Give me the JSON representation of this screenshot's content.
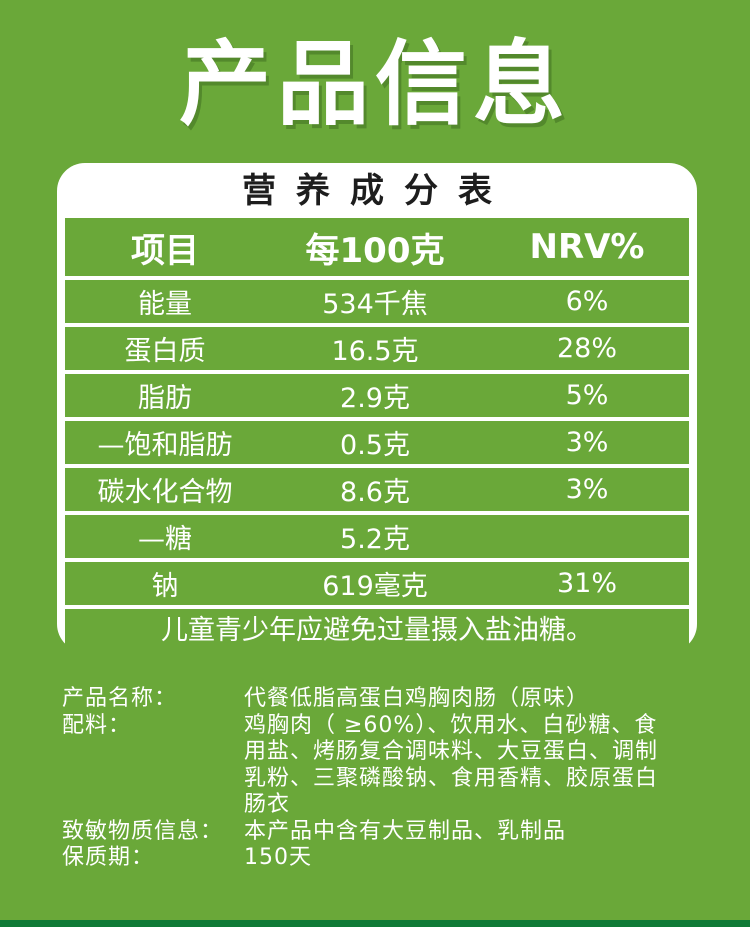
{
  "title": "产品信息",
  "table": {
    "title": "营养成分表",
    "headers": [
      "项目",
      "每100克",
      "NRV%"
    ],
    "rows": [
      {
        "item": "能量",
        "value": "534千焦",
        "nrv": "6%"
      },
      {
        "item": "蛋白质",
        "value": "16.5克",
        "nrv": "28%"
      },
      {
        "item": "脂肪",
        "value": "2.9克",
        "nrv": "5%"
      },
      {
        "item": "—饱和脂肪",
        "value": "0.5克",
        "nrv": "3%"
      },
      {
        "item": "碳水化合物",
        "value": "8.6克",
        "nrv": "3%"
      },
      {
        "item": "—糖",
        "value": "5.2克",
        "nrv": ""
      },
      {
        "item": "钠",
        "value": "619毫克",
        "nrv": "31%"
      }
    ],
    "note": "儿童青少年应避免过量摄入盐油糖。"
  },
  "info": {
    "name_label": "产品名称：",
    "name_value": "代餐低脂高蛋白鸡胸肉肠（原味）",
    "ingredients_label": "配料：",
    "ingredients_lines": [
      "鸡胸肉（ ≥60%）、饮用水、白砂糖、食",
      "用盐、烤肠复合调味料、大豆蛋白、调制",
      "乳粉、三聚磷酸钠、食用香精、胶原蛋白",
      "肠衣"
    ],
    "allergen_label": "致敏物质信息：",
    "allergen_value": "本产品中含有大豆制品、乳制品",
    "shelf_label": "保质期：",
    "shelf_value": "150天"
  },
  "colors": {
    "brand_green": "#6aa839",
    "dark_green": "#0f7a36",
    "white": "#ffffff"
  }
}
